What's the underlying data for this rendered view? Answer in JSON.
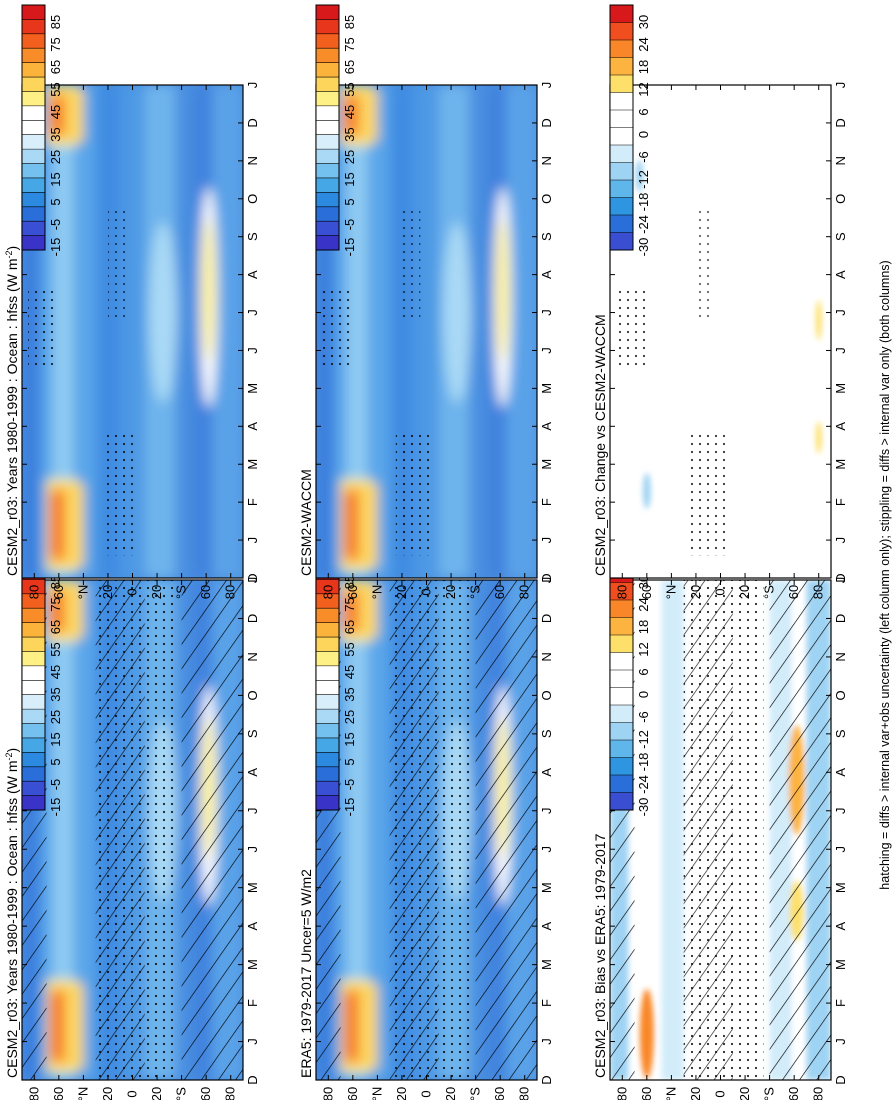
{
  "figure": {
    "orientation": "rotated 90° counter-clockwise",
    "footer": "hatching = diffs > internal var+obs uncertainty (left column only); stippling = diffs > internal var only (both columns)",
    "colors": {
      "abs_scale": [
        "#d7191c",
        "#e8361c",
        "#f3601e",
        "#f88c28",
        "#fbb33c",
        "#fdd55a",
        "#fff085",
        "#ffffff",
        "#ffffff",
        "#d8eefa",
        "#a9d9f5",
        "#74c1ef",
        "#46a7e7",
        "#2b8ae0",
        "#2a6fd9",
        "#3a50d4",
        "#3a33c8"
      ],
      "diff_scale": [
        "#d7191c",
        "#f04e1e",
        "#f98628",
        "#fdb340",
        "#fde06a",
        "#ffffff",
        "#ffffff",
        "#ffffff",
        "#d2ecfa",
        "#9fd3f3",
        "#5fb6eb",
        "#2e95e1",
        "#2a6fd9",
        "#3a4ed2"
      ]
    }
  },
  "chart_data": [
    {
      "type": "heatmap",
      "panel": "top-left",
      "title": "CESM2_r03: Years 1980-1999 : Ocean : hfss (W m",
      "title_sup": "-2",
      "title_end": ")",
      "x": [
        "D",
        "J",
        "F",
        "M",
        "A",
        "M",
        "J",
        "J",
        "A",
        "S",
        "O",
        "N",
        "D",
        "J"
      ],
      "y_ticks": [
        "80",
        "60",
        "°N",
        "20",
        "0",
        "20",
        "°S",
        "60",
        "80"
      ],
      "ylim": [
        -90,
        90
      ],
      "colorbar": {
        "labels": [
          "85",
          "75",
          "65",
          "55",
          "45",
          "35",
          "25",
          "15",
          "5",
          "-5",
          "-15"
        ],
        "range": [
          -20,
          90
        ]
      },
      "hatching": true,
      "stippling": true
    },
    {
      "type": "heatmap",
      "panel": "top-right",
      "title": "CESM2_r03: Years 1980-1999 : Ocean : hfss (W m",
      "title_sup": "-2",
      "title_end": ")",
      "x": [
        "D",
        "J",
        "F",
        "M",
        "A",
        "M",
        "J",
        "J",
        "A",
        "S",
        "O",
        "N",
        "D",
        "J"
      ],
      "y_ticks": [
        "80",
        "60",
        "°N",
        "20",
        "0",
        "20",
        "°S",
        "60",
        "80"
      ],
      "ylim": [
        -90,
        90
      ],
      "colorbar": {
        "labels": [
          "85",
          "75",
          "65",
          "55",
          "45",
          "35",
          "25",
          "15",
          "5",
          "-5",
          "-15"
        ],
        "range": [
          -20,
          90
        ]
      },
      "hatching": false,
      "stippling": true
    },
    {
      "type": "heatmap",
      "panel": "middle-left",
      "title": "ERA5: 1979-2017 Uncer=5 W/m2",
      "x": [
        "D",
        "J",
        "F",
        "M",
        "A",
        "M",
        "J",
        "J",
        "A",
        "S",
        "O",
        "N",
        "D",
        "J"
      ],
      "y_ticks": [
        "80",
        "60",
        "°N",
        "20",
        "0",
        "20",
        "°S",
        "60",
        "80"
      ],
      "ylim": [
        -90,
        90
      ],
      "colorbar": {
        "labels": [
          "85",
          "75",
          "65",
          "55",
          "45",
          "35",
          "25",
          "15",
          "5",
          "-5",
          "-15"
        ],
        "range": [
          -20,
          90
        ]
      },
      "hatching": true,
      "stippling": true
    },
    {
      "type": "heatmap",
      "panel": "middle-right",
      "title": "CESM2-WACCM",
      "x": [
        "D",
        "J",
        "F",
        "M",
        "A",
        "M",
        "J",
        "J",
        "A",
        "S",
        "O",
        "N",
        "D",
        "J"
      ],
      "y_ticks": [
        "80",
        "60",
        "°N",
        "20",
        "0",
        "20",
        "°S",
        "60",
        "80"
      ],
      "ylim": [
        -90,
        90
      ],
      "colorbar": {
        "labels": [
          "85",
          "75",
          "65",
          "55",
          "45",
          "35",
          "25",
          "15",
          "5",
          "-5",
          "-15"
        ],
        "range": [
          -20,
          90
        ]
      },
      "hatching": false,
      "stippling": true
    },
    {
      "type": "heatmap",
      "panel": "bottom-left",
      "title": "CESM2_r03: Bias vs ERA5: 1979-2017",
      "x": [
        "D",
        "J",
        "F",
        "M",
        "A",
        "M",
        "J",
        "J",
        "A",
        "S",
        "O",
        "N",
        "D",
        "J"
      ],
      "y_ticks": [
        "80",
        "60",
        "°N",
        "20",
        "0",
        "20",
        "°S",
        "60",
        "80"
      ],
      "ylim": [
        -90,
        90
      ],
      "colorbar": {
        "labels": [
          "30",
          "24",
          "18",
          "12",
          "6",
          "0",
          "-6",
          "-12",
          "-18",
          "-24",
          "-30"
        ],
        "range": [
          -33,
          33
        ]
      },
      "hatching": true,
      "stippling": true
    },
    {
      "type": "heatmap",
      "panel": "bottom-right",
      "title": "CESM2_r03: Change vs CESM2-WACCM",
      "x": [
        "D",
        "J",
        "F",
        "M",
        "A",
        "M",
        "J",
        "J",
        "A",
        "S",
        "O",
        "N",
        "D",
        "J"
      ],
      "y_ticks": [
        "80",
        "60",
        "°N",
        "20",
        "0",
        "20",
        "°S",
        "60",
        "80"
      ],
      "ylim": [
        -90,
        90
      ],
      "colorbar": {
        "labels": [
          "30",
          "24",
          "18",
          "12",
          "6",
          "0",
          "-6",
          "-12",
          "-18",
          "-24",
          "-30"
        ],
        "range": [
          -33,
          33
        ]
      },
      "hatching": false,
      "stippling": true
    }
  ]
}
